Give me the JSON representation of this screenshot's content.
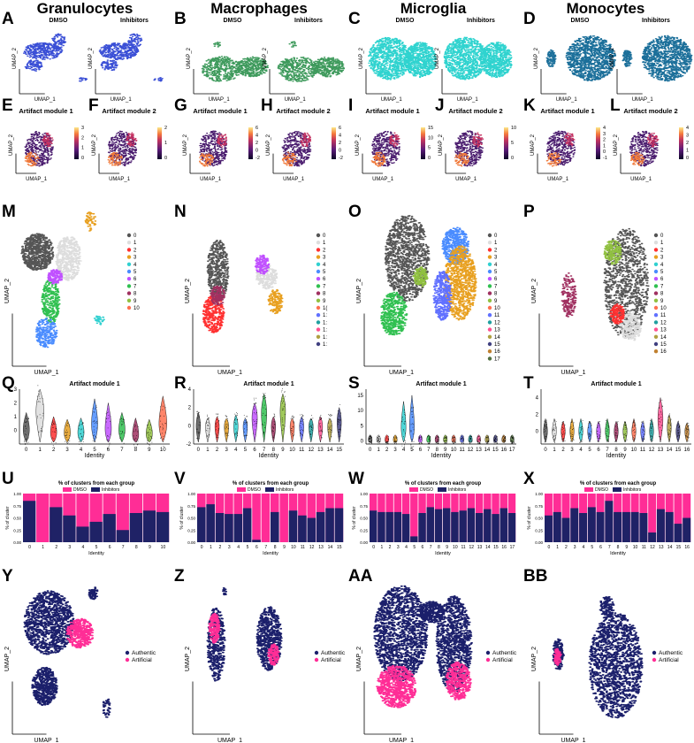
{
  "columns": [
    "Granulocytes",
    "Macrophages",
    "Microglia",
    "Monocytes"
  ],
  "panel_labels": [
    "A",
    "B",
    "C",
    "D",
    "E",
    "F",
    "G",
    "H",
    "I",
    "J",
    "K",
    "L",
    "M",
    "N",
    "O",
    "P",
    "Q",
    "R",
    "S",
    "T",
    "U",
    "V",
    "W",
    "X",
    "Y",
    "Z",
    "AA",
    "BB"
  ],
  "conditions": [
    "DMSO",
    "Inhibitors"
  ],
  "modules": [
    "Artifact module 1",
    "Artifact module 2"
  ],
  "axis": {
    "x": "UMAP_1",
    "y": "UMAP_2",
    "identity": "Identity",
    "pct": "% of cluster"
  },
  "colors": {
    "granulocytes": "#3a4fd6",
    "macrophages": "#3e9a5c",
    "microglia": "#2fd3cf",
    "monocytes": "#1b6f9a",
    "dmso": "#ff2d96",
    "inhibitors": "#1f2266",
    "authentic": "#1b1f6b",
    "artificial": "#ff2d96"
  },
  "feature_scales": [
    {
      "ticks": [
        "3",
        "2",
        "1",
        "0"
      ]
    },
    {
      "ticks": [
        "2",
        "1",
        "0"
      ]
    },
    {
      "ticks": [
        "6",
        "4",
        "2",
        "0",
        "-2"
      ]
    },
    {
      "ticks": [
        "6",
        "4",
        "2",
        "0",
        "-2"
      ]
    },
    {
      "ticks": [
        "15",
        "10",
        "5",
        "0"
      ]
    },
    {
      "ticks": [
        "10",
        "5",
        "0"
      ]
    },
    {
      "ticks": [
        "4",
        "3",
        "2",
        "1",
        "0",
        "-1"
      ]
    },
    {
      "ticks": [
        "4",
        "3",
        "2",
        "1",
        "0"
      ]
    }
  ],
  "cluster_legends": [
    [
      "0",
      "1",
      "2",
      "3",
      "4",
      "5",
      "6",
      "7",
      "8",
      "9",
      "10"
    ],
    [
      "0",
      "1",
      "2",
      "3",
      "4",
      "5",
      "6",
      "7",
      "8",
      "9",
      "1(",
      "1:",
      "1:",
      "1:",
      "1:",
      "1:"
    ],
    [
      "0",
      "1",
      "2",
      "3",
      "4",
      "5",
      "6",
      "7",
      "8",
      "9",
      "10",
      "11",
      "12",
      "13",
      "14",
      "15",
      "16",
      "17"
    ],
    [
      "0",
      "1",
      "2",
      "3",
      "4",
      "5",
      "6",
      "7",
      "8",
      "9",
      "10",
      "11",
      "12",
      "13",
      "14",
      "15",
      "16"
    ]
  ],
  "cluster_palette": [
    "#555555",
    "#dddddd",
    "#ff3030",
    "#e8a020",
    "#30d0d0",
    "#4a8cff",
    "#c050ff",
    "#30c050",
    "#a03060",
    "#90c040",
    "#ff7050",
    "#6070ff",
    "#20a0a0",
    "#ff5090",
    "#b0a040",
    "#404080",
    "#c08030",
    "#507040"
  ],
  "violin_title": "Artifact module 1",
  "bar_title": "% of clusters from each group",
  "legend_groups": [
    "DMSO",
    "Inhibitors"
  ],
  "legend_auth": [
    "Authentic",
    "Artificial"
  ],
  "chart_data": [
    {
      "type": "violin",
      "panel": "Q",
      "title": "Artifact module 1",
      "xlabel": "Identity",
      "categories": [
        "0",
        "1",
        "2",
        "3",
        "4",
        "5",
        "6",
        "7",
        "8",
        "9",
        "10"
      ],
      "ylim": [
        -1,
        3
      ],
      "yticks": [
        0,
        1,
        2,
        3
      ],
      "medians": [
        0,
        1.5,
        -0.2,
        -0.2,
        -0.2,
        0.4,
        0,
        0,
        -0.4,
        -0.3,
        0.4
      ],
      "tops": [
        1.3,
        3.0,
        1.0,
        0.8,
        0.9,
        2.3,
        2.0,
        1.3,
        0.9,
        0.8,
        2.5
      ]
    },
    {
      "type": "violin",
      "panel": "R",
      "title": "Artifact module 1",
      "xlabel": "Identity",
      "categories": [
        "0",
        "1",
        "2",
        "3",
        "4",
        "5",
        "6",
        "7",
        "8",
        "9",
        "10",
        "11",
        "12",
        "13",
        "14",
        "15"
      ],
      "ylim": [
        -2,
        4
      ],
      "yticks": [
        -2,
        0,
        2,
        4
      ],
      "medians": [
        0,
        0,
        0,
        0,
        0,
        0,
        1,
        1.5,
        0,
        1.8,
        0,
        0,
        0,
        0,
        0,
        0.5
      ],
      "tops": [
        1.5,
        0.8,
        1,
        0.8,
        1.2,
        0.8,
        2.5,
        3.5,
        1.0,
        3.5,
        0.8,
        1.0,
        0.8,
        1.0,
        0.8,
        2.0
      ]
    },
    {
      "type": "violin",
      "panel": "S",
      "title": "Artifact module 1",
      "xlabel": "Identity",
      "categories": [
        "0",
        "1",
        "2",
        "3",
        "4",
        "5",
        "6",
        "7",
        "8",
        "9",
        "10",
        "11",
        "12",
        "13",
        "14",
        "15",
        "16",
        "17"
      ],
      "ylim": [
        -1,
        17
      ],
      "yticks": [
        0,
        5,
        10,
        15
      ],
      "medians": [
        0.3,
        0.3,
        0.3,
        0.3,
        4,
        4,
        0.3,
        0.3,
        0.3,
        0.3,
        0.3,
        0.3,
        0.3,
        0.3,
        0.3,
        0.3,
        0.3,
        0.3
      ],
      "tops": [
        2,
        2,
        2,
        2,
        13,
        15,
        2,
        2,
        2,
        2,
        2,
        2,
        2,
        2,
        2,
        2,
        2,
        2
      ]
    },
    {
      "type": "violin",
      "panel": "T",
      "title": "Artifact module 1",
      "xlabel": "Identity",
      "categories": [
        "0",
        "1",
        "2",
        "3",
        "4",
        "5",
        "6",
        "7",
        "8",
        "9",
        "10",
        "11",
        "12",
        "13",
        "14",
        "15",
        "16"
      ],
      "ylim": [
        -1.5,
        5
      ],
      "yticks": [
        0,
        2,
        4
      ],
      "medians": [
        0,
        0,
        0,
        0,
        0,
        0,
        0,
        0,
        0,
        0,
        0,
        0,
        0,
        1.5,
        0.5,
        0,
        0
      ],
      "tops": [
        1.5,
        1.5,
        1.2,
        1.5,
        1.5,
        1.2,
        1.2,
        1.5,
        1.2,
        1.2,
        1.5,
        1.2,
        1.5,
        4,
        2,
        1.2,
        1.0
      ]
    },
    {
      "type": "bar",
      "panel": "U",
      "title": "% of clusters from each group",
      "xlabel": "Identity",
      "ylabel": "% of cluster",
      "categories": [
        "0",
        "1",
        "2",
        "3",
        "4",
        "5",
        "6",
        "7",
        "8",
        "9",
        "10"
      ],
      "series": [
        {
          "name": "Inhibitors",
          "values": [
            0.85,
            0.0,
            0.72,
            0.55,
            0.32,
            0.42,
            0.58,
            0.25,
            0.6,
            0.65,
            0.62
          ]
        }
      ],
      "yticks": [
        "0.00",
        "0.25",
        "0.50",
        "0.75",
        "1.00"
      ]
    },
    {
      "type": "bar",
      "panel": "V",
      "title": "% of clusters from each group",
      "xlabel": "Identity",
      "ylabel": "% of cluster",
      "categories": [
        "0",
        "1",
        "2",
        "3",
        "4",
        "5",
        "6",
        "7",
        "8",
        "9",
        "10",
        "11",
        "12",
        "13",
        "14",
        "15"
      ],
      "series": [
        {
          "name": "Inhibitors",
          "values": [
            0.72,
            0.78,
            0.6,
            0.58,
            0.58,
            0.7,
            0.05,
            0.0,
            0.62,
            0.0,
            0.65,
            0.55,
            0.5,
            0.62,
            0.7,
            0.7
          ]
        }
      ],
      "yticks": [
        "0.00",
        "0.25",
        "0.50",
        "0.75",
        "1.00"
      ]
    },
    {
      "type": "bar",
      "panel": "W",
      "title": "% of clusters from each group",
      "xlabel": "Identity",
      "ylabel": "% of cluster",
      "categories": [
        "0",
        "1",
        "2",
        "3",
        "4",
        "5",
        "6",
        "7",
        "8",
        "9",
        "10",
        "11",
        "12",
        "13",
        "14",
        "15",
        "16",
        "17"
      ],
      "series": [
        {
          "name": "Inhibitors",
          "values": [
            0.65,
            0.62,
            0.62,
            0.62,
            0.58,
            0.12,
            0.6,
            0.72,
            0.68,
            0.7,
            0.62,
            0.65,
            0.7,
            0.6,
            0.68,
            0.58,
            0.7,
            0.6
          ]
        }
      ],
      "yticks": [
        "0.00",
        "0.25",
        "0.50",
        "0.75",
        "1.00"
      ]
    },
    {
      "type": "bar",
      "panel": "X",
      "title": "% of clusters from each group",
      "xlabel": "Identity",
      "ylabel": "% of cluster",
      "categories": [
        "0",
        "1",
        "2",
        "3",
        "4",
        "5",
        "6",
        "7",
        "8",
        "9",
        "10",
        "11",
        "12",
        "13",
        "14",
        "15",
        "16"
      ],
      "series": [
        {
          "name": "Inhibitors",
          "values": [
            0.55,
            0.62,
            0.5,
            0.7,
            0.6,
            0.72,
            0.62,
            0.85,
            0.62,
            0.62,
            0.62,
            0.6,
            0.2,
            0.68,
            0.62,
            0.38,
            0.5
          ]
        }
      ],
      "yticks": [
        "0.00",
        "0.25",
        "0.50",
        "0.75",
        "1.00"
      ]
    }
  ]
}
